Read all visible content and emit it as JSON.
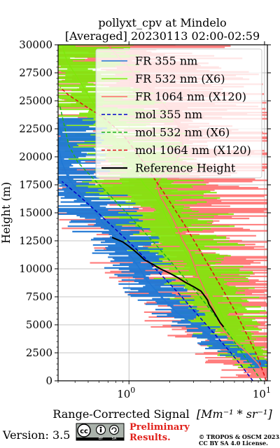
{
  "chart_data": {
    "type": "line",
    "title": "pollyxt_cpv at Mindelo",
    "subtitle": "[Averaged] 20230113 02:00-02:59",
    "xlabel_main": "Range-Corrected Signal",
    "xlabel_unit": "[Mm⁻¹ * sr⁻¹]",
    "ylabel": "Height (m)",
    "xscale": "log",
    "xlim": [
      0.3,
      10.5
    ],
    "ylim": [
      0,
      30000
    ],
    "grid": true,
    "legend_position": "top-right",
    "x_ticks": [
      {
        "value": 1,
        "base": "10",
        "exp": "0"
      },
      {
        "value": 10,
        "base": "10",
        "exp": "1"
      }
    ],
    "y_ticks": [
      0,
      2500,
      5000,
      7500,
      10000,
      12500,
      15000,
      17500,
      20000,
      22500,
      25000,
      27500,
      30000
    ],
    "series": [
      {
        "name": "FR 355 nm",
        "color": "#1f77d4",
        "style": "solid",
        "points": [
          [
            9.5,
            1500
          ],
          [
            6.5,
            2300
          ],
          [
            5.0,
            3000
          ],
          [
            4.0,
            4000
          ],
          [
            3.0,
            5000
          ],
          [
            2.3,
            6000
          ],
          [
            1.9,
            7000
          ],
          [
            1.6,
            8000
          ],
          [
            1.35,
            9000
          ],
          [
            1.2,
            10000
          ],
          [
            1.05,
            11000
          ],
          [
            0.9,
            12000
          ],
          [
            0.78,
            13000
          ],
          [
            0.65,
            14000
          ],
          [
            0.57,
            15000
          ],
          [
            0.5,
            16000
          ],
          [
            0.42,
            17000
          ],
          [
            0.36,
            18000
          ],
          [
            0.32,
            19500
          ],
          [
            0.3,
            21000
          ],
          [
            0.32,
            22000
          ],
          [
            0.3,
            23000
          ]
        ]
      },
      {
        "name": "FR 532 nm (X6)",
        "color": "#7fe80a",
        "style": "solid",
        "points": [
          [
            9.0,
            1500
          ],
          [
            7.5,
            2500
          ],
          [
            6.3,
            3500
          ],
          [
            5.5,
            4500
          ],
          [
            5.0,
            5500
          ],
          [
            4.6,
            6500
          ],
          [
            4.1,
            7500
          ],
          [
            3.6,
            8500
          ],
          [
            3.2,
            9500
          ],
          [
            2.9,
            10500
          ],
          [
            2.6,
            11500
          ],
          [
            2.35,
            12500
          ],
          [
            2.1,
            13500
          ],
          [
            1.9,
            14500
          ],
          [
            1.75,
            15500
          ],
          [
            1.55,
            16500
          ],
          [
            1.3,
            17500
          ],
          [
            1.15,
            18500
          ],
          [
            1.0,
            19500
          ],
          [
            0.85,
            21000
          ],
          [
            0.7,
            22500
          ],
          [
            0.6,
            24000
          ],
          [
            0.5,
            25500
          ],
          [
            0.42,
            27000
          ],
          [
            0.35,
            28500
          ],
          [
            0.32,
            30000
          ]
        ]
      },
      {
        "name": "FR 1064 nm (X120)",
        "color": "#ff6b6b",
        "style": "solid",
        "points": [
          [
            10.0,
            500
          ],
          [
            9.0,
            1500
          ],
          [
            7.5,
            2500
          ],
          [
            6.0,
            3500
          ],
          [
            5.0,
            4500
          ],
          [
            4.5,
            5500
          ],
          [
            4.2,
            6500
          ],
          [
            3.8,
            7500
          ],
          [
            3.5,
            8500
          ],
          [
            3.2,
            9500
          ],
          [
            3.0,
            10500
          ],
          [
            2.8,
            11500
          ],
          [
            2.5,
            12500
          ],
          [
            2.3,
            13500
          ],
          [
            2.1,
            14500
          ],
          [
            1.9,
            15500
          ],
          [
            1.7,
            16500
          ],
          [
            1.6,
            17500
          ],
          [
            1.8,
            18500
          ],
          [
            2.2,
            19500
          ],
          [
            2.5,
            21000
          ],
          [
            2.4,
            22500
          ],
          [
            2.0,
            24000
          ],
          [
            1.6,
            25500
          ],
          [
            1.2,
            27000
          ],
          [
            0.9,
            28500
          ],
          [
            0.7,
            30000
          ]
        ]
      },
      {
        "name": "mol 355 nm",
        "color": "#0000cc",
        "style": "dashed",
        "points": [
          [
            8.2,
            0
          ],
          [
            6.6,
            1500
          ],
          [
            5.2,
            3000
          ],
          [
            4.05,
            4500
          ],
          [
            3.15,
            6000
          ],
          [
            2.45,
            7500
          ],
          [
            1.88,
            9000
          ],
          [
            1.43,
            10500
          ],
          [
            1.08,
            12000
          ],
          [
            0.8,
            13500
          ],
          [
            0.59,
            15000
          ],
          [
            0.43,
            16500
          ],
          [
            0.32,
            17800
          ]
        ]
      },
      {
        "name": "mol 532 nm (X6)",
        "color": "#1db21d",
        "style": "dashed",
        "points": [
          [
            9.5,
            0
          ],
          [
            7.8,
            1500
          ],
          [
            6.4,
            3000
          ],
          [
            5.2,
            4500
          ],
          [
            4.2,
            6000
          ],
          [
            3.35,
            7500
          ],
          [
            2.65,
            9000
          ],
          [
            2.08,
            10500
          ],
          [
            1.62,
            12000
          ],
          [
            1.25,
            13500
          ],
          [
            0.96,
            15000
          ],
          [
            0.73,
            16500
          ],
          [
            0.55,
            18000
          ],
          [
            0.42,
            19500
          ],
          [
            0.36,
            21000
          ],
          [
            0.31,
            24500
          ]
        ]
      },
      {
        "name": "mol 1064 nm (X120)",
        "color": "#dd1111",
        "style": "dashed",
        "points": [
          [
            10.3,
            0
          ],
          [
            9.0,
            2000
          ],
          [
            7.5,
            4000
          ],
          [
            6.2,
            6000
          ],
          [
            5.0,
            8000
          ],
          [
            4.0,
            10000
          ],
          [
            3.2,
            12000
          ],
          [
            2.55,
            14000
          ],
          [
            2.0,
            16000
          ],
          [
            1.55,
            18000
          ],
          [
            1.2,
            20000
          ],
          [
            0.9,
            22000
          ],
          [
            0.65,
            23500
          ],
          [
            0.48,
            24500
          ],
          [
            0.36,
            25500
          ],
          [
            0.31,
            26200
          ]
        ]
      },
      {
        "name": "Reference Height",
        "color": "#000000",
        "style": "solid",
        "points": [
          [
            5.0,
            4800
          ],
          [
            4.7,
            5200
          ],
          [
            4.5,
            5600
          ],
          [
            4.3,
            6000
          ],
          [
            4.1,
            6400
          ],
          [
            3.9,
            6800
          ],
          [
            3.8,
            7200
          ],
          [
            3.6,
            7600
          ],
          [
            3.4,
            8000
          ],
          [
            3.0,
            8400
          ],
          [
            2.6,
            8800
          ],
          [
            2.3,
            9200
          ],
          [
            2.0,
            9600
          ],
          [
            1.7,
            10000
          ],
          [
            1.5,
            10400
          ],
          [
            1.3,
            10800
          ],
          [
            1.2,
            11200
          ],
          [
            1.1,
            11600
          ],
          [
            1.0,
            12000
          ],
          [
            0.9,
            12400
          ],
          [
            0.75,
            12800
          ]
        ]
      }
    ]
  },
  "footer": {
    "version": "Version: 3.5",
    "badge_cc": "cc",
    "badge_by": "BY",
    "badge_sa": "SA",
    "preliminary_line1": "Preliminary",
    "preliminary_line2": "Results.",
    "copyright_line1": "© TROPOS & OSCM 2023.",
    "copyright_line2": "CC BY SA 4.0 License."
  }
}
